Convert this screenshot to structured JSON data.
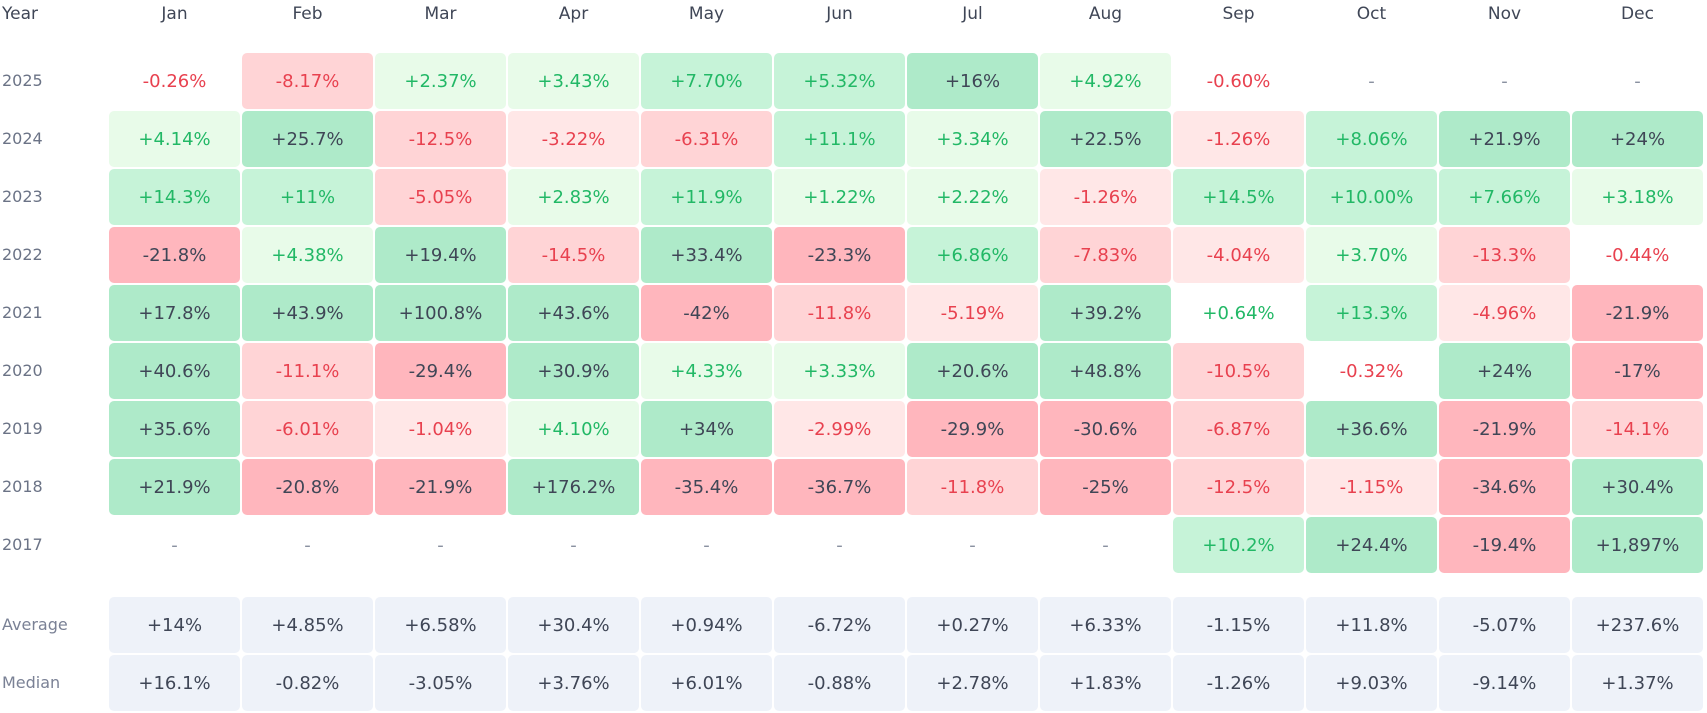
{
  "header": {
    "year_label": "Year"
  },
  "colors": {
    "pos_text": "#22b866",
    "neg_text": "#e8414f",
    "dark_text": "#3f4656",
    "dash_text": "#8a91a0",
    "pos_light": "#e8fbe9",
    "pos_mid": "#c6f3d8",
    "pos_strong": "#aeeac9",
    "neg_light": "#ffe7e7",
    "neg_mid": "#ffd4d6",
    "neg_strong": "#ffb6bd",
    "stat_bg": "#eef2f9"
  },
  "chart_data": {
    "type": "table",
    "columns": [
      "Jan",
      "Feb",
      "Mar",
      "Apr",
      "May",
      "Jun",
      "Jul",
      "Aug",
      "Sep",
      "Oct",
      "Nov",
      "Dec"
    ],
    "rows": [
      {
        "year": "2025",
        "cells": [
          [
            "-0.26%",
            "none"
          ],
          [
            "-8.17%",
            "neg_mid"
          ],
          [
            "+2.37%",
            "pos_light"
          ],
          [
            "+3.43%",
            "pos_light"
          ],
          [
            "+7.70%",
            "pos_mid"
          ],
          [
            "+5.32%",
            "pos_mid"
          ],
          [
            "+16%",
            "pos_strong"
          ],
          [
            "+4.92%",
            "pos_light"
          ],
          [
            "-0.60%",
            "none"
          ],
          [
            "-",
            "none"
          ],
          [
            "-",
            "none"
          ],
          [
            "-",
            "none"
          ]
        ]
      },
      {
        "year": "2024",
        "cells": [
          [
            "+4.14%",
            "pos_light"
          ],
          [
            "+25.7%",
            "pos_strong"
          ],
          [
            "-12.5%",
            "neg_mid"
          ],
          [
            "-3.22%",
            "neg_light"
          ],
          [
            "-6.31%",
            "neg_mid"
          ],
          [
            "+11.1%",
            "pos_mid"
          ],
          [
            "+3.34%",
            "pos_light"
          ],
          [
            "+22.5%",
            "pos_strong"
          ],
          [
            "-1.26%",
            "neg_light"
          ],
          [
            "+8.06%",
            "pos_mid"
          ],
          [
            "+21.9%",
            "pos_strong"
          ],
          [
            "+24%",
            "pos_strong"
          ]
        ]
      },
      {
        "year": "2023",
        "cells": [
          [
            "+14.3%",
            "pos_mid"
          ],
          [
            "+11%",
            "pos_mid"
          ],
          [
            "-5.05%",
            "neg_mid"
          ],
          [
            "+2.83%",
            "pos_light"
          ],
          [
            "+11.9%",
            "pos_mid"
          ],
          [
            "+1.22%",
            "pos_light"
          ],
          [
            "+2.22%",
            "pos_light"
          ],
          [
            "-1.26%",
            "neg_light"
          ],
          [
            "+14.5%",
            "pos_mid"
          ],
          [
            "+10.00%",
            "pos_mid"
          ],
          [
            "+7.66%",
            "pos_mid"
          ],
          [
            "+3.18%",
            "pos_light"
          ]
        ]
      },
      {
        "year": "2022",
        "cells": [
          [
            "-21.8%",
            "neg_strong"
          ],
          [
            "+4.38%",
            "pos_light"
          ],
          [
            "+19.4%",
            "pos_strong"
          ],
          [
            "-14.5%",
            "neg_mid"
          ],
          [
            "+33.4%",
            "pos_strong"
          ],
          [
            "-23.3%",
            "neg_strong"
          ],
          [
            "+6.86%",
            "pos_mid"
          ],
          [
            "-7.83%",
            "neg_mid"
          ],
          [
            "-4.04%",
            "neg_light"
          ],
          [
            "+3.70%",
            "pos_light"
          ],
          [
            "-13.3%",
            "neg_mid"
          ],
          [
            "-0.44%",
            "none"
          ]
        ]
      },
      {
        "year": "2021",
        "cells": [
          [
            "+17.8%",
            "pos_strong"
          ],
          [
            "+43.9%",
            "pos_strong"
          ],
          [
            "+100.8%",
            "pos_strong"
          ],
          [
            "+43.6%",
            "pos_strong"
          ],
          [
            "-42%",
            "neg_strong"
          ],
          [
            "-11.8%",
            "neg_mid"
          ],
          [
            "-5.19%",
            "neg_light"
          ],
          [
            "+39.2%",
            "pos_strong"
          ],
          [
            "+0.64%",
            "none"
          ],
          [
            "+13.3%",
            "pos_mid"
          ],
          [
            "-4.96%",
            "neg_light"
          ],
          [
            "-21.9%",
            "neg_strong"
          ]
        ]
      },
      {
        "year": "2020",
        "cells": [
          [
            "+40.6%",
            "pos_strong"
          ],
          [
            "-11.1%",
            "neg_mid"
          ],
          [
            "-29.4%",
            "neg_strong"
          ],
          [
            "+30.9%",
            "pos_strong"
          ],
          [
            "+4.33%",
            "pos_light"
          ],
          [
            "+3.33%",
            "pos_light"
          ],
          [
            "+20.6%",
            "pos_strong"
          ],
          [
            "+48.8%",
            "pos_strong"
          ],
          [
            "-10.5%",
            "neg_mid"
          ],
          [
            "-0.32%",
            "none"
          ],
          [
            "+24%",
            "pos_strong"
          ],
          [
            "-17%",
            "neg_strong"
          ]
        ]
      },
      {
        "year": "2019",
        "cells": [
          [
            "+35.6%",
            "pos_strong"
          ],
          [
            "-6.01%",
            "neg_mid"
          ],
          [
            "-1.04%",
            "neg_light"
          ],
          [
            "+4.10%",
            "pos_light"
          ],
          [
            "+34%",
            "pos_strong"
          ],
          [
            "-2.99%",
            "neg_light"
          ],
          [
            "-29.9%",
            "neg_strong"
          ],
          [
            "-30.6%",
            "neg_strong"
          ],
          [
            "-6.87%",
            "neg_mid"
          ],
          [
            "+36.6%",
            "pos_strong"
          ],
          [
            "-21.9%",
            "neg_strong"
          ],
          [
            "-14.1%",
            "neg_mid"
          ]
        ]
      },
      {
        "year": "2018",
        "cells": [
          [
            "+21.9%",
            "pos_strong"
          ],
          [
            "-20.8%",
            "neg_strong"
          ],
          [
            "-21.9%",
            "neg_strong"
          ],
          [
            "+176.2%",
            "pos_strong"
          ],
          [
            "-35.4%",
            "neg_strong"
          ],
          [
            "-36.7%",
            "neg_strong"
          ],
          [
            "-11.8%",
            "neg_mid"
          ],
          [
            "-25%",
            "neg_strong"
          ],
          [
            "-12.5%",
            "neg_mid"
          ],
          [
            "-1.15%",
            "neg_light"
          ],
          [
            "-34.6%",
            "neg_strong"
          ],
          [
            "+30.4%",
            "pos_strong"
          ]
        ]
      },
      {
        "year": "2017",
        "cells": [
          [
            "-",
            "none"
          ],
          [
            "-",
            "none"
          ],
          [
            "-",
            "none"
          ],
          [
            "-",
            "none"
          ],
          [
            "-",
            "none"
          ],
          [
            "-",
            "none"
          ],
          [
            "-",
            "none"
          ],
          [
            "-",
            "none"
          ],
          [
            "+10.2%",
            "pos_mid"
          ],
          [
            "+24.4%",
            "pos_strong"
          ],
          [
            "-19.4%",
            "neg_strong"
          ],
          [
            "+1,897%",
            "pos_strong"
          ]
        ]
      }
    ],
    "stats": [
      {
        "label": "Average",
        "values": [
          "+14%",
          "+4.85%",
          "+6.58%",
          "+30.4%",
          "+0.94%",
          "-6.72%",
          "+0.27%",
          "+6.33%",
          "-1.15%",
          "+11.8%",
          "-5.07%",
          "+237.6%"
        ]
      },
      {
        "label": "Median",
        "values": [
          "+16.1%",
          "-0.82%",
          "-3.05%",
          "+3.76%",
          "+6.01%",
          "-0.88%",
          "+2.78%",
          "+1.83%",
          "-1.26%",
          "+9.03%",
          "-9.14%",
          "+1.37%"
        ]
      }
    ]
  }
}
